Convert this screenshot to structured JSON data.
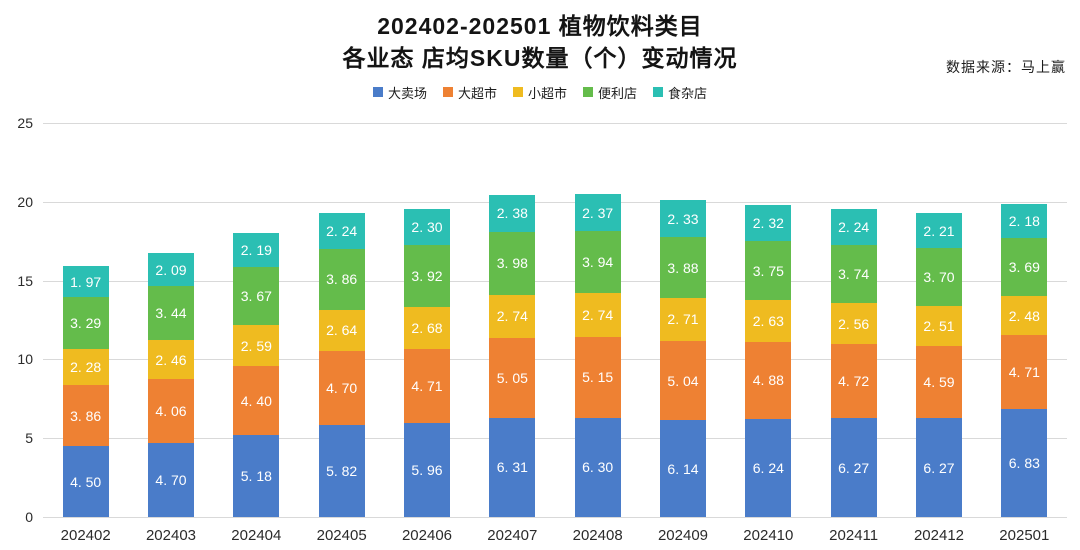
{
  "title": {
    "line1": "202402-202501 植物饮料类目",
    "line2": "各业态 店均SKU数量（个）变动情况"
  },
  "source": "数据来源：马上赢",
  "legend": [
    "大卖场",
    "大超市",
    "小超市",
    "便利店",
    "食杂店"
  ],
  "colors": {
    "grid": "#d9d9d9",
    "bar_label": "#ffffff",
    "axis_text": "#2b2b2b"
  },
  "chart_data": {
    "type": "bar",
    "stacked": true,
    "title": "202402-202501 植物饮料类目 各业态 店均SKU数量（个）变动情况",
    "xlabel": "",
    "ylabel": "",
    "ylim": [
      0,
      25
    ],
    "yticks": [
      0,
      5,
      10,
      15,
      20,
      25
    ],
    "grid": true,
    "legend_position": "top",
    "value_label_decimals": 2,
    "categories": [
      "202402",
      "202403",
      "202404",
      "202405",
      "202406",
      "202407",
      "202408",
      "202409",
      "202410",
      "202411",
      "202412",
      "202501"
    ],
    "series": [
      {
        "name": "大卖场",
        "color": "#4a7cc9",
        "values": [
          4.5,
          4.7,
          5.18,
          5.82,
          5.96,
          6.31,
          6.3,
          6.14,
          6.24,
          6.27,
          6.27,
          6.83
        ]
      },
      {
        "name": "大超市",
        "color": "#ee8133",
        "values": [
          3.86,
          4.06,
          4.4,
          4.7,
          4.71,
          5.05,
          5.15,
          5.04,
          4.88,
          4.72,
          4.59,
          4.71
        ]
      },
      {
        "name": "小超市",
        "color": "#efbb20",
        "values": [
          2.28,
          2.46,
          2.59,
          2.64,
          2.68,
          2.74,
          2.74,
          2.71,
          2.63,
          2.56,
          2.51,
          2.48
        ]
      },
      {
        "name": "便利店",
        "color": "#64bc4b",
        "values": [
          3.29,
          3.44,
          3.67,
          3.86,
          3.92,
          3.98,
          3.94,
          3.88,
          3.75,
          3.74,
          3.7,
          3.69
        ]
      },
      {
        "name": "食杂店",
        "color": "#2bbfb3",
        "values": [
          1.97,
          2.09,
          2.19,
          2.24,
          2.3,
          2.38,
          2.37,
          2.33,
          2.32,
          2.24,
          2.21,
          2.18
        ]
      }
    ]
  }
}
